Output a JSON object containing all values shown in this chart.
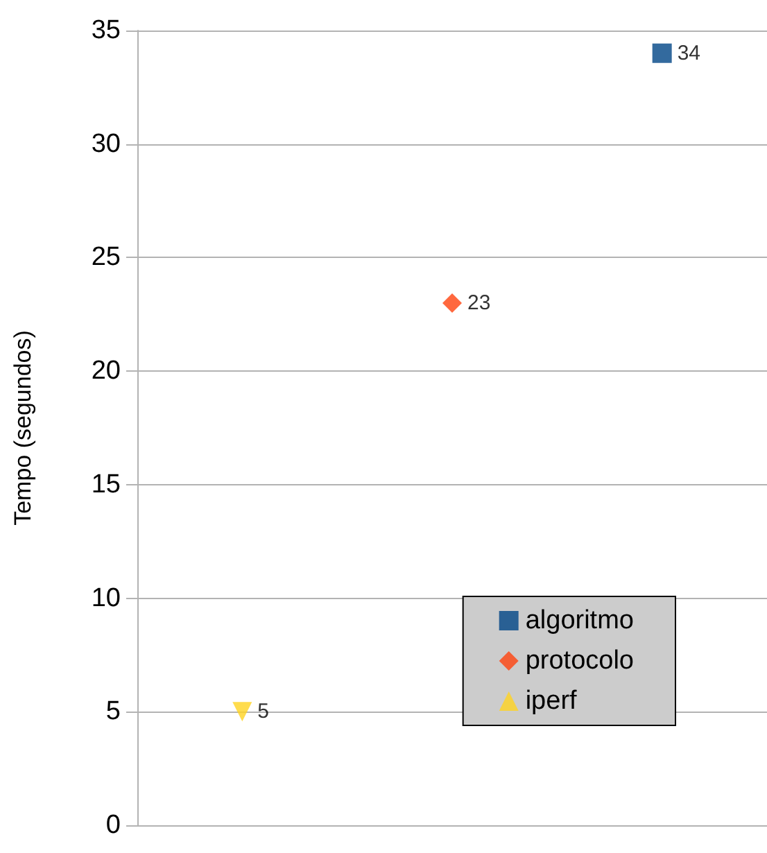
{
  "chart_data": {
    "type": "scatter",
    "ylabel": "Tempo (segundos)",
    "categories": [
      null,
      null,
      null
    ],
    "series": [
      {
        "name": "algoritmo",
        "color": "#004586",
        "marker": "square",
        "values": [
          null,
          null,
          34
        ]
      },
      {
        "name": "protocolo",
        "color": "#ff420e",
        "marker": "diamond",
        "values": [
          null,
          23,
          null
        ]
      },
      {
        "name": "iperf",
        "color": "#ffd320",
        "marker": "triangle",
        "values": [
          5,
          null,
          null
        ]
      }
    ],
    "ylim": [
      0,
      35
    ],
    "yticks": [
      0,
      5,
      10,
      15,
      20,
      25,
      30,
      35
    ],
    "grid": "y",
    "legend": "bottom right",
    "data_labels": true
  }
}
